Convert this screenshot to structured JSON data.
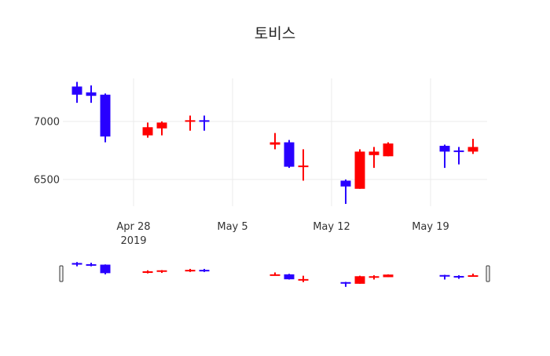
{
  "chart_data": {
    "type": "candlestick",
    "title": "토비스",
    "x": [
      "2019-04-24",
      "2019-04-25",
      "2019-04-26",
      "2019-04-29",
      "2019-04-30",
      "2019-05-02",
      "2019-05-03",
      "2019-05-08",
      "2019-05-09",
      "2019-05-10",
      "2019-05-13",
      "2019-05-14",
      "2019-05-15",
      "2019-05-16",
      "2019-05-20",
      "2019-05-21",
      "2019-05-22"
    ],
    "open": [
      7300,
      7250,
      7230,
      6880,
      6940,
      7000,
      7010,
      6800,
      6820,
      6620,
      6490,
      6420,
      6710,
      6700,
      6790,
      6750,
      6740
    ],
    "high": [
      7340,
      7310,
      7240,
      6990,
      7000,
      7050,
      7050,
      6900,
      6840,
      6760,
      6500,
      6760,
      6780,
      6820,
      6800,
      6780,
      6850
    ],
    "low": [
      7160,
      7160,
      6820,
      6860,
      6880,
      6920,
      6920,
      6760,
      6600,
      6490,
      6290,
      6420,
      6600,
      6700,
      6600,
      6630,
      6720
    ],
    "close": [
      7230,
      7220,
      6870,
      6950,
      6990,
      7010,
      7000,
      6820,
      6610,
      6620,
      6440,
      6740,
      6740,
      6810,
      6740,
      6740,
      6780
    ],
    "increasing_color": "#ff0000",
    "decreasing_color": "#2800ff",
    "xticks": [
      {
        "date": "2019-04-28",
        "label": "Apr 28",
        "sublabel": "2019"
      },
      {
        "date": "2019-05-05",
        "label": "May 5",
        "sublabel": ""
      },
      {
        "date": "2019-05-12",
        "label": "May 12",
        "sublabel": ""
      },
      {
        "date": "2019-05-19",
        "label": "May 19",
        "sublabel": ""
      }
    ],
    "yticks": [
      6500,
      7000
    ],
    "ylim": [
      6270,
      7370
    ],
    "xlim": [
      "2019-04-23",
      "2019-05-23"
    ],
    "grid": true,
    "rangeslider": true
  }
}
